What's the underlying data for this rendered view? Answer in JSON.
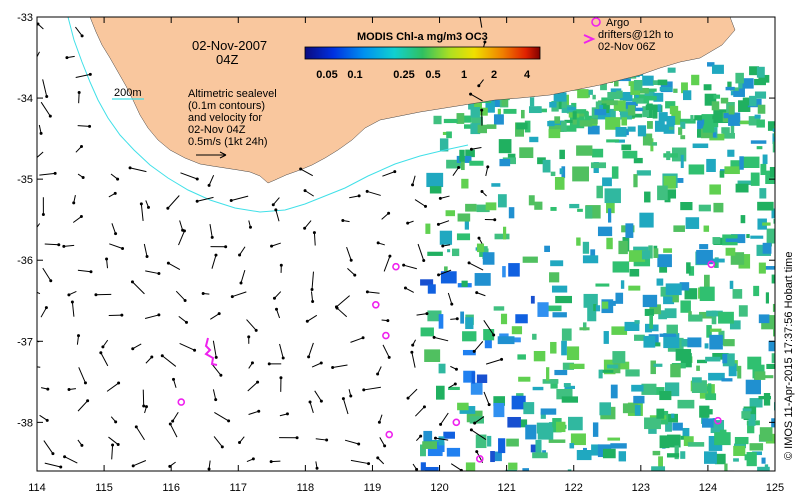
{
  "map": {
    "date_line1": "02-Nov-2007",
    "date_line2": "04Z",
    "colorbar_title": "MODIS Chl-a mg/m3 OC3",
    "colorbar_ticks": [
      "0.05",
      "0.1",
      "0.25",
      "0.5",
      "1",
      "2",
      "4"
    ],
    "contour_label": "200m",
    "info_lines": [
      "Altimetric sealevel",
      "(0.1m contours)",
      "and velocity for",
      "02-Nov 04Z",
      "0.5m/s (1kt 24h)"
    ],
    "argo_lines": [
      "Argo",
      "drifters@12h to",
      "02-Nov 06Z"
    ],
    "credit": "© IMOS 11-Apr-2015 17:37:56 Hobart time",
    "colors": {
      "land": "#f9c79e",
      "contour": "#40e0e8",
      "drifter": "#ee22ee",
      "arrow": "#000000"
    }
  },
  "chart_data": {
    "type": "map",
    "x_ticks": [
      "114",
      "115",
      "116",
      "117",
      "118",
      "119",
      "120",
      "121",
      "122",
      "123",
      "124",
      "125"
    ],
    "y_ticks": [
      "-33",
      "-34",
      "-35",
      "-36",
      "-37",
      "-38"
    ],
    "xlim": [
      114,
      125
    ],
    "ylim": [
      -38.6,
      -33
    ],
    "drifters": [
      {
        "lon": 119.35,
        "lat": -36.08
      },
      {
        "lon": 119.05,
        "lat": -36.55
      },
      {
        "lon": 119.2,
        "lat": -36.93
      },
      {
        "lon": 116.15,
        "lat": -37.75
      },
      {
        "lon": 119.25,
        "lat": -38.15
      },
      {
        "lon": 120.25,
        "lat": -38.0
      },
      {
        "lon": 120.6,
        "lat": -38.45
      },
      {
        "lon": 124.05,
        "lat": -36.05
      },
      {
        "lon": 124.15,
        "lat": -37.98
      }
    ]
  }
}
